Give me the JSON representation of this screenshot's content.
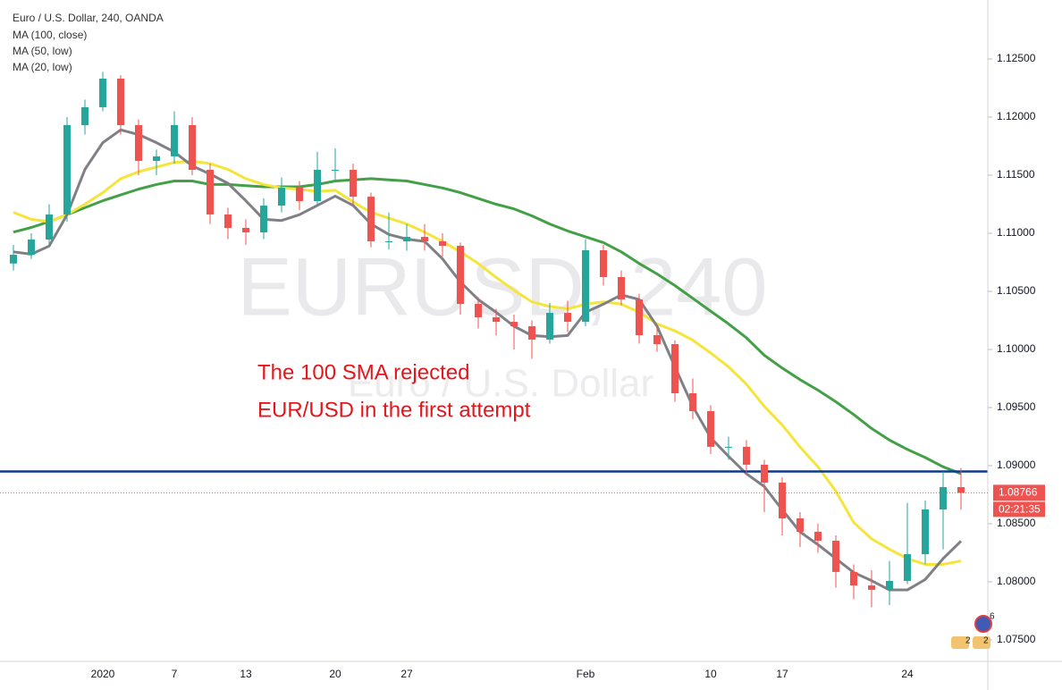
{
  "chart_data": {
    "type": "candlestick",
    "title": "Euro / U.S. Dollar, 240, OANDA",
    "watermark": "EURUSD, 240",
    "watermark_subtitle": "Euro / U.S. Dollar",
    "annotation": [
      "The 100 SMA rejected",
      "EUR/USD in the first attempt"
    ],
    "categories": [
      null,
      null,
      null,
      null,
      null,
      "2020",
      null,
      null,
      null,
      "7",
      null,
      null,
      null,
      "13",
      null,
      null,
      null,
      null,
      "20",
      null,
      null,
      null,
      "27",
      null,
      null,
      null,
      null,
      null,
      null,
      null,
      null,
      null,
      "Feb",
      null,
      null,
      null,
      null,
      null,
      null,
      "10",
      null,
      null,
      null,
      "17",
      null,
      null,
      null,
      null,
      null,
      null,
      "24",
      null,
      null,
      null
    ],
    "open": [
      1.1074,
      1.10815,
      1.10946,
      1.11162,
      1.11931,
      1.12085,
      1.12331,
      1.11931,
      1.11623,
      1.11662,
      1.11931,
      1.11546,
      1.11162,
      1.11046,
      1.11008,
      1.11238,
      1.11392,
      1.11277,
      1.11546,
      1.11546,
      1.11315,
      1.10931,
      1.10931,
      1.10969,
      1.10931,
      1.10892,
      1.10392,
      1.10277,
      1.10238,
      1.102,
      1.10085,
      1.10315,
      1.10238,
      1.10854,
      1.10623,
      1.10431,
      1.10123,
      1.10046,
      1.09623,
      1.09469,
      1.09162,
      1.09162,
      1.09008,
      1.08854,
      1.08546,
      1.08431,
      1.08354,
      1.08085,
      1.07969,
      1.07931,
      1.08008,
      1.08238,
      1.08623,
      1.08815
    ],
    "high": [
      1.109,
      1.11,
      1.1125,
      1.12,
      1.1215,
      1.1239,
      1.1236,
      1.1198,
      1.1172,
      1.1205,
      1.12,
      1.116,
      1.1122,
      1.1112,
      1.113,
      1.1148,
      1.1145,
      1.117,
      1.1173,
      1.116,
      1.1135,
      1.1118,
      1.1108,
      1.1108,
      1.11,
      1.1092,
      1.1045,
      1.1035,
      1.103,
      1.1025,
      1.104,
      1.1042,
      1.1095,
      1.109,
      1.1068,
      1.1048,
      1.102,
      1.1008,
      1.0975,
      1.0952,
      1.0925,
      1.0922,
      1.0905,
      1.089,
      1.086,
      1.085,
      1.084,
      1.0815,
      1.081,
      1.0818,
      1.0868,
      1.087,
      1.0895,
      1.0898
    ],
    "low": [
      1.1068,
      1.1078,
      1.109,
      1.111,
      1.1185,
      1.1205,
      1.1185,
      1.115,
      1.115,
      1.116,
      1.115,
      1.1108,
      1.1095,
      1.109,
      1.1095,
      1.1118,
      1.112,
      1.1125,
      1.1145,
      1.1125,
      1.1088,
      1.1086,
      1.1085,
      1.1085,
      1.108,
      1.103,
      1.1018,
      1.1012,
      1.1,
      1.0992,
      1.1005,
      1.1015,
      1.102,
      1.1055,
      1.1038,
      1.1005,
      1.0998,
      1.0955,
      1.094,
      1.091,
      1.0905,
      1.0892,
      1.086,
      1.084,
      1.083,
      1.0825,
      1.0795,
      1.0785,
      1.0778,
      1.078,
      1.0798,
      1.0815,
      1.0828,
      1.0862
    ],
    "close": [
      1.10815,
      1.10946,
      1.11162,
      1.11931,
      1.12085,
      1.12331,
      1.11931,
      1.11623,
      1.11662,
      1.11931,
      1.11546,
      1.11162,
      1.11046,
      1.11008,
      1.11238,
      1.11392,
      1.11277,
      1.11546,
      1.11546,
      1.11315,
      1.10931,
      1.10931,
      1.10969,
      1.10931,
      1.10892,
      1.10392,
      1.10277,
      1.10238,
      1.102,
      1.10085,
      1.10315,
      1.10238,
      1.10854,
      1.10623,
      1.10431,
      1.10123,
      1.10046,
      1.09623,
      1.09469,
      1.09162,
      1.09162,
      1.09008,
      1.08854,
      1.08546,
      1.08431,
      1.08354,
      1.08085,
      1.07969,
      1.07931,
      1.08008,
      1.08238,
      1.08623,
      1.08815,
      1.08766
    ],
    "up_color": "#26a69a",
    "down_color": "#ef5350",
    "series": [
      {
        "name": "MA (100, close)",
        "color": "#43a047",
        "values": [
          1.1101,
          1.1105,
          1.111,
          1.1116,
          1.1122,
          1.1128,
          1.1133,
          1.1138,
          1.1142,
          1.1145,
          1.1145,
          1.1142,
          1.1142,
          1.1141,
          1.114,
          1.114,
          1.114,
          1.1142,
          1.1145,
          1.1146,
          1.1147,
          1.1146,
          1.1145,
          1.1142,
          1.1139,
          1.1135,
          1.113,
          1.1125,
          1.1121,
          1.1115,
          1.1108,
          1.1102,
          1.1097,
          1.1092,
          1.1084,
          1.1074,
          1.1065,
          1.1055,
          1.1044,
          1.1033,
          1.1022,
          1.101,
          1.0995,
          1.0984,
          1.0974,
          1.0965,
          1.0955,
          1.0944,
          1.0932,
          1.0922,
          1.0914,
          1.0907,
          1.0899,
          1.0893
        ]
      },
      {
        "name": "MA (50, low)",
        "color": "#f5e43b",
        "values": [
          1.1118,
          1.1112,
          1.111,
          1.1116,
          1.1125,
          1.1135,
          1.1147,
          1.1153,
          1.1157,
          1.1161,
          1.1162,
          1.116,
          1.1155,
          1.1147,
          1.1142,
          1.1139,
          1.1138,
          1.1136,
          1.1137,
          1.1127,
          1.1118,
          1.1113,
          1.1108,
          1.1101,
          1.1093,
          1.1084,
          1.1074,
          1.1062,
          1.1051,
          1.1041,
          1.1037,
          1.1035,
          1.1039,
          1.1041,
          1.1039,
          1.1032,
          1.1022,
          1.1016,
          1.1008,
          1.0997,
          1.0985,
          1.097,
          1.0951,
          1.0935,
          1.0916,
          1.0899,
          1.0878,
          1.0851,
          1.0837,
          1.0828,
          1.082,
          1.0815,
          1.0815,
          1.0818
        ]
      },
      {
        "name": "MA (20, low)",
        "color": "#7f7f86",
        "values": [
          1.1084,
          1.1082,
          1.1089,
          1.1116,
          1.1155,
          1.1178,
          1.1189,
          1.1185,
          1.1178,
          1.117,
          1.1158,
          1.1151,
          1.1143,
          1.1128,
          1.1112,
          1.1111,
          1.1116,
          1.1124,
          1.1132,
          1.1124,
          1.1108,
          1.1099,
          1.1095,
          1.1093,
          1.1078,
          1.1058,
          1.1043,
          1.1032,
          1.102,
          1.1012,
          1.1011,
          1.1012,
          1.1032,
          1.1039,
          1.1047,
          1.1043,
          1.102,
          1.0985,
          1.0951,
          1.0924,
          1.0908,
          1.0893,
          1.0882,
          1.0862,
          1.0843,
          1.0832,
          1.082,
          1.0808,
          1.0801,
          1.0793,
          1.0793,
          1.0802,
          1.082,
          1.0835
        ]
      }
    ],
    "level": {
      "value": 1.0895,
      "color": "#0d3a8c"
    },
    "last_price": 1.08766,
    "countdown": "02:21:35",
    "event_badges": [
      6,
      2,
      2
    ],
    "ylim": [
      1.07315,
      1.13008
    ],
    "yticks": [
      {
        "value": 1.075,
        "label": "1.07500"
      },
      {
        "value": 1.08,
        "label": "1.08000"
      },
      {
        "value": 1.085,
        "label": "1.08500"
      },
      {
        "value": 1.09,
        "label": "1.09000"
      },
      {
        "value": 1.095,
        "label": "1.09500"
      },
      {
        "value": 1.1,
        "label": "1.10000"
      },
      {
        "value": 1.105,
        "label": "1.10500"
      },
      {
        "value": 1.11,
        "label": "1.11000"
      },
      {
        "value": 1.115,
        "label": "1.11500"
      },
      {
        "value": 1.12,
        "label": "1.12000"
      },
      {
        "value": 1.125,
        "label": "1.12500"
      }
    ],
    "grid": false
  }
}
